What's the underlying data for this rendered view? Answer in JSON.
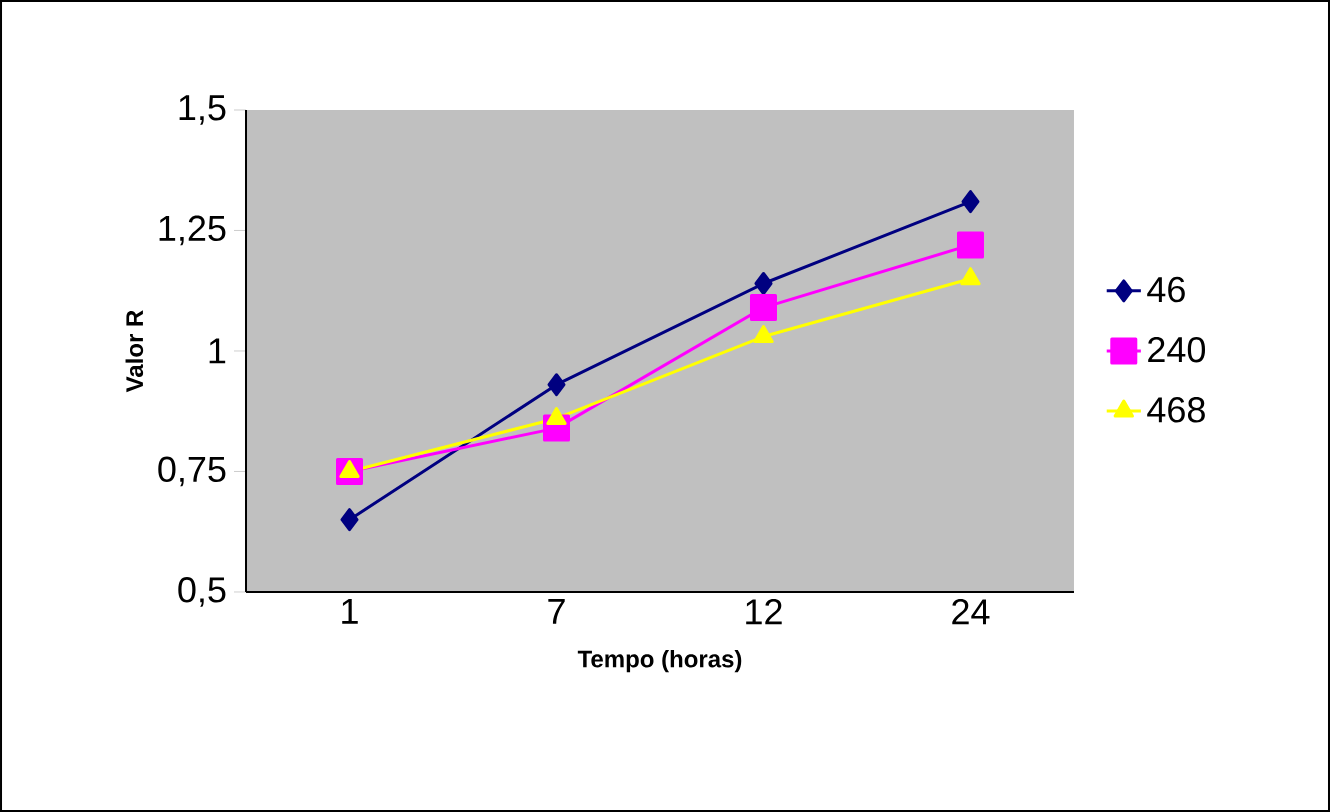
{
  "chart_data": {
    "type": "line",
    "xlabel": "Tempo (horas)",
    "ylabel": "Valor R",
    "categories": [
      "1",
      "7",
      "12",
      "24"
    ],
    "series": [
      {
        "name": "46",
        "color": "#000080",
        "marker": "diamond",
        "values": [
          0.65,
          0.93,
          1.14,
          1.31
        ]
      },
      {
        "name": "240",
        "color": "#ff00ff",
        "marker": "square",
        "values": [
          0.75,
          0.84,
          1.09,
          1.22
        ]
      },
      {
        "name": "468",
        "color": "#ffff00",
        "marker": "triangle",
        "values": [
          0.75,
          0.86,
          1.03,
          1.15
        ]
      }
    ],
    "ylim": [
      0.5,
      1.5
    ],
    "yticks": [
      {
        "value": 0.5,
        "label": "0,5"
      },
      {
        "value": 0.75,
        "label": "0,75"
      },
      {
        "value": 1,
        "label": "1"
      },
      {
        "value": 1.25,
        "label": "1,25"
      },
      {
        "value": 1.5,
        "label": "1,5"
      }
    ],
    "legend": "right",
    "grid": false
  }
}
